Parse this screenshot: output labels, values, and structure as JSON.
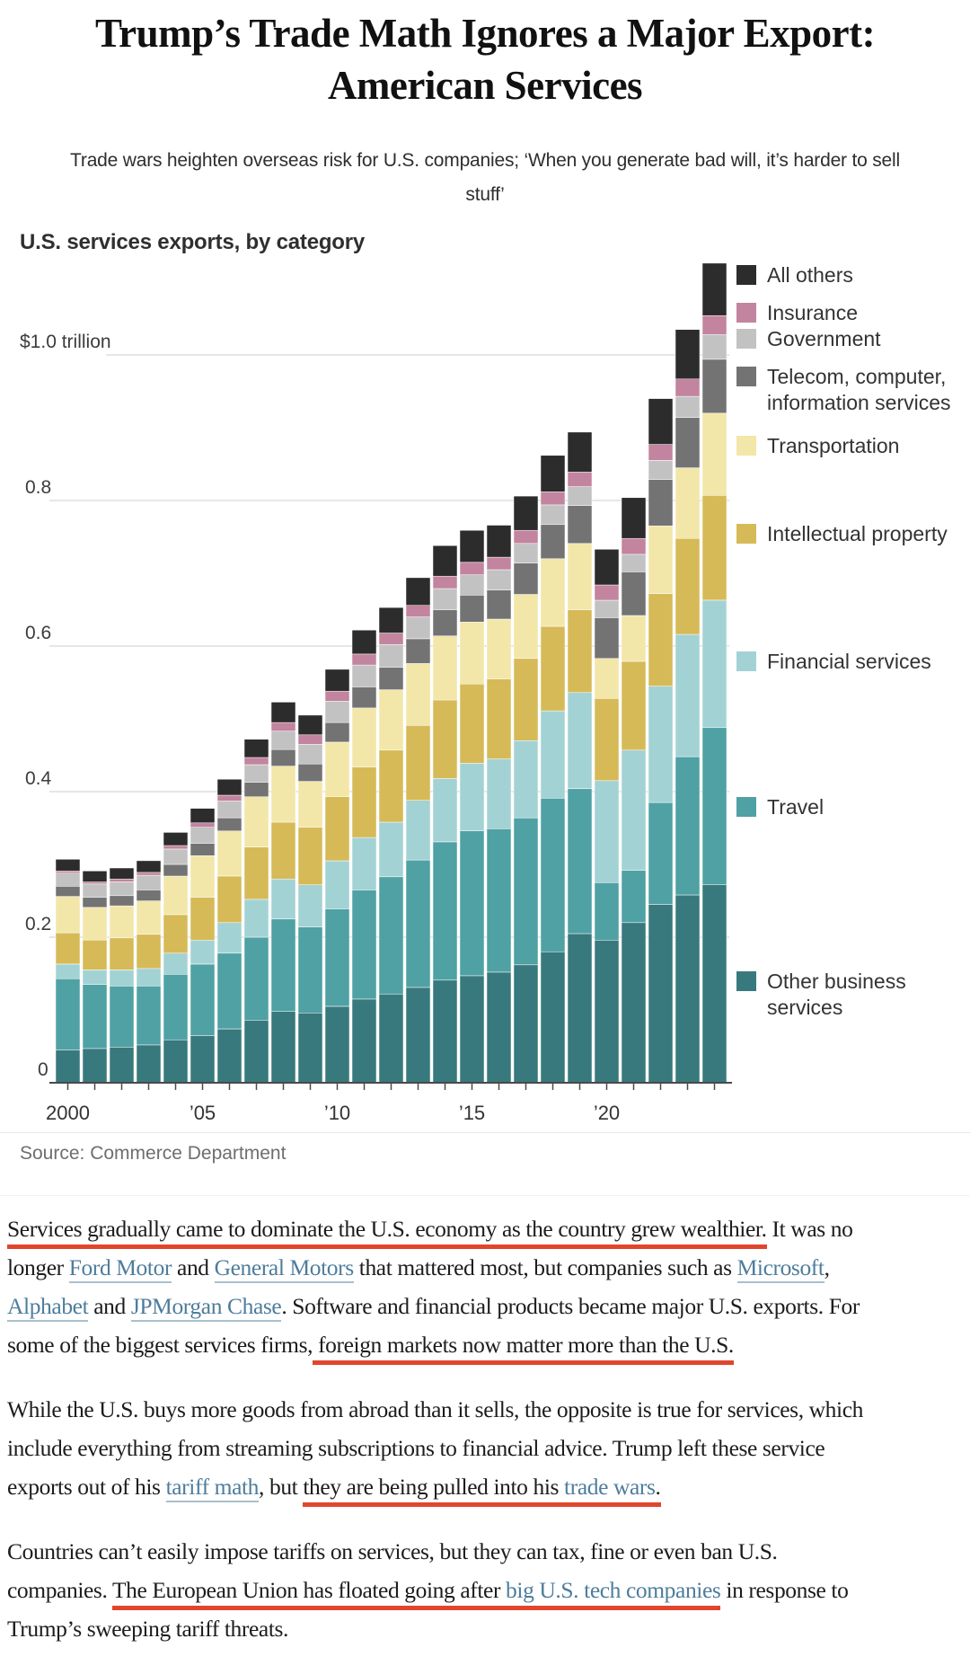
{
  "article": {
    "headline_lines": [
      "Trump’s Trade Math Ignores a Major Export:",
      "American Services"
    ],
    "subhead_lines": [
      "Trade wars heighten overseas risk for U.S. companies; ‘When you generate bad will, it’s harder to sell",
      "stuff’"
    ],
    "paragraphs": [
      {
        "lines": [
          [
            {
              "t": "Services gradually came to dominate the U.S. economy as the country grew wealthier.",
              "s": "red"
            },
            {
              "t": " It was no",
              "s": "p"
            }
          ],
          [
            {
              "t": "longer ",
              "s": "p"
            },
            {
              "t": "Ford Motor",
              "s": "link"
            },
            {
              "t": " and ",
              "s": "p"
            },
            {
              "t": "General Motors",
              "s": "link"
            },
            {
              "t": " that mattered most, but companies such as ",
              "s": "p"
            },
            {
              "t": "Microsoft",
              "s": "link"
            },
            {
              "t": ",",
              "s": "p"
            }
          ],
          [
            {
              "t": "Alphabet",
              "s": "link"
            },
            {
              "t": " and ",
              "s": "p"
            },
            {
              "t": "JPMorgan Chase",
              "s": "link"
            },
            {
              "t": ". Software and financial products became major U.S. exports. For",
              "s": "p"
            }
          ],
          [
            {
              "t": "some of the biggest services firms,",
              "s": "p"
            },
            {
              "t": " foreign markets now matter more than the U.S.",
              "s": "red"
            }
          ]
        ]
      },
      {
        "lines": [
          [
            {
              "t": "While the U.S. buys more goods from abroad than it sells, the opposite is true for services, which",
              "s": "p"
            }
          ],
          [
            {
              "t": "include everything from streaming subscriptions to financial advice. Trump left these service",
              "s": "p"
            }
          ],
          [
            {
              "t": "exports out of his ",
              "s": "p"
            },
            {
              "t": "tariff math",
              "s": "link"
            },
            {
              "t": ", but ",
              "s": "p"
            },
            {
              "t": "they are being pulled into his ",
              "s": "red"
            },
            {
              "t": "trade wars",
              "s": "redlink"
            },
            {
              "t": ".",
              "s": "red"
            }
          ]
        ]
      },
      {
        "lines": [
          [
            {
              "t": "Countries can’t easily impose tariffs on services, but they can tax, fine or even ban U.S.",
              "s": "p"
            }
          ],
          [
            {
              "t": "companies. ",
              "s": "p"
            },
            {
              "t": "The European Union has floated going after ",
              "s": "red"
            },
            {
              "t": "big U.S. tech companies",
              "s": "redlink"
            },
            {
              "t": " in response to",
              "s": "p"
            }
          ],
          [
            {
              "t": "Trump’s sweeping tariff threats.",
              "s": "p"
            }
          ]
        ]
      }
    ]
  },
  "chart": {
    "title": "U.S. services exports, by category",
    "source": "Source: Commerce Department"
  },
  "chart_data": {
    "type": "bar",
    "stacked": true,
    "title": "U.S. services exports, by category",
    "unit": "trillion USD",
    "source": "Source: Commerce Department",
    "legend_position": "right",
    "grid": true,
    "x": [
      2000,
      2001,
      2002,
      2003,
      2004,
      2005,
      2006,
      2007,
      2008,
      2009,
      2010,
      2011,
      2012,
      2013,
      2014,
      2015,
      2016,
      2017,
      2018,
      2019,
      2020,
      2021,
      2022,
      2023,
      2024
    ],
    "x_tick_labels": [
      {
        "label": "2000",
        "year": 2000
      },
      {
        "label": "’05",
        "year": 2005
      },
      {
        "label": "’10",
        "year": 2010
      },
      {
        "label": "’15",
        "year": 2015
      },
      {
        "label": "’20",
        "year": 2020
      }
    ],
    "y_axis": {
      "top_label": "$1.0 trillion",
      "tick_labels": [
        "0",
        "0.2",
        "0.4",
        "0.6",
        "0.8"
      ],
      "ticks": [
        0,
        0.2,
        0.4,
        0.6,
        0.8,
        1.0
      ],
      "ylim": [
        0,
        1.15
      ]
    },
    "series": [
      {
        "id": "other-business-services",
        "name": "Other business\nservices",
        "color": "#38797d",
        "values": [
          0.045,
          0.047,
          0.049,
          0.052,
          0.059,
          0.065,
          0.074,
          0.086,
          0.098,
          0.096,
          0.105,
          0.115,
          0.122,
          0.131,
          0.141,
          0.147,
          0.152,
          0.162,
          0.18,
          0.205,
          0.196,
          0.22,
          0.245,
          0.258,
          0.272
        ]
      },
      {
        "id": "travel",
        "name": "Travel",
        "color": "#4fa1a4",
        "values": [
          0.098,
          0.088,
          0.084,
          0.081,
          0.09,
          0.098,
          0.104,
          0.114,
          0.127,
          0.118,
          0.134,
          0.15,
          0.161,
          0.175,
          0.19,
          0.199,
          0.197,
          0.202,
          0.211,
          0.199,
          0.079,
          0.072,
          0.14,
          0.19,
          0.216
        ]
      },
      {
        "id": "financial-services",
        "name": "Financial services",
        "color": "#a3d2d4",
        "values": [
          0.02,
          0.02,
          0.022,
          0.024,
          0.029,
          0.033,
          0.042,
          0.052,
          0.055,
          0.058,
          0.066,
          0.072,
          0.075,
          0.082,
          0.087,
          0.093,
          0.096,
          0.106,
          0.12,
          0.132,
          0.14,
          0.165,
          0.16,
          0.168,
          0.175
        ]
      },
      {
        "id": "intellectual-property",
        "name": "Intellectual property",
        "color": "#d6ba58",
        "values": [
          0.043,
          0.041,
          0.044,
          0.047,
          0.053,
          0.059,
          0.064,
          0.072,
          0.078,
          0.079,
          0.088,
          0.097,
          0.099,
          0.103,
          0.108,
          0.109,
          0.11,
          0.113,
          0.116,
          0.114,
          0.113,
          0.122,
          0.127,
          0.132,
          0.144
        ]
      },
      {
        "id": "transportation",
        "name": "Transportation",
        "color": "#f2e6a9",
        "values": [
          0.05,
          0.045,
          0.044,
          0.046,
          0.053,
          0.057,
          0.062,
          0.069,
          0.077,
          0.063,
          0.075,
          0.081,
          0.083,
          0.085,
          0.088,
          0.085,
          0.082,
          0.088,
          0.093,
          0.091,
          0.055,
          0.063,
          0.093,
          0.097,
          0.113
        ]
      },
      {
        "id": "telecom-computer-information",
        "name": "Telecom, computer,\ninformation services",
        "color": "#737373",
        "values": [
          0.014,
          0.014,
          0.014,
          0.015,
          0.016,
          0.017,
          0.018,
          0.02,
          0.023,
          0.024,
          0.027,
          0.029,
          0.031,
          0.034,
          0.036,
          0.037,
          0.04,
          0.043,
          0.047,
          0.052,
          0.056,
          0.06,
          0.064,
          0.069,
          0.074
        ]
      },
      {
        "id": "government",
        "name": "Government",
        "color": "#c2c2c2",
        "values": [
          0.018,
          0.018,
          0.019,
          0.02,
          0.021,
          0.022,
          0.023,
          0.024,
          0.025,
          0.027,
          0.029,
          0.03,
          0.031,
          0.03,
          0.029,
          0.028,
          0.028,
          0.027,
          0.027,
          0.026,
          0.024,
          0.024,
          0.026,
          0.029,
          0.034
        ]
      },
      {
        "id": "insurance",
        "name": "Insurance",
        "color": "#c2849e",
        "values": [
          0.003,
          0.003,
          0.004,
          0.004,
          0.005,
          0.006,
          0.008,
          0.01,
          0.012,
          0.013,
          0.014,
          0.015,
          0.016,
          0.016,
          0.017,
          0.017,
          0.017,
          0.018,
          0.018,
          0.02,
          0.021,
          0.022,
          0.022,
          0.024,
          0.026
        ]
      },
      {
        "id": "all-others",
        "name": "All others",
        "color": "#2c2c2c",
        "values": [
          0.016,
          0.015,
          0.015,
          0.016,
          0.018,
          0.02,
          0.022,
          0.025,
          0.028,
          0.027,
          0.03,
          0.033,
          0.035,
          0.038,
          0.042,
          0.044,
          0.044,
          0.047,
          0.05,
          0.055,
          0.049,
          0.056,
          0.063,
          0.068,
          0.072
        ]
      }
    ]
  },
  "colors": {
    "red_annotation": "#e0462e",
    "link": "#4d7d9c",
    "axis": "#4a4a4a",
    "gridline": "#dedede"
  }
}
